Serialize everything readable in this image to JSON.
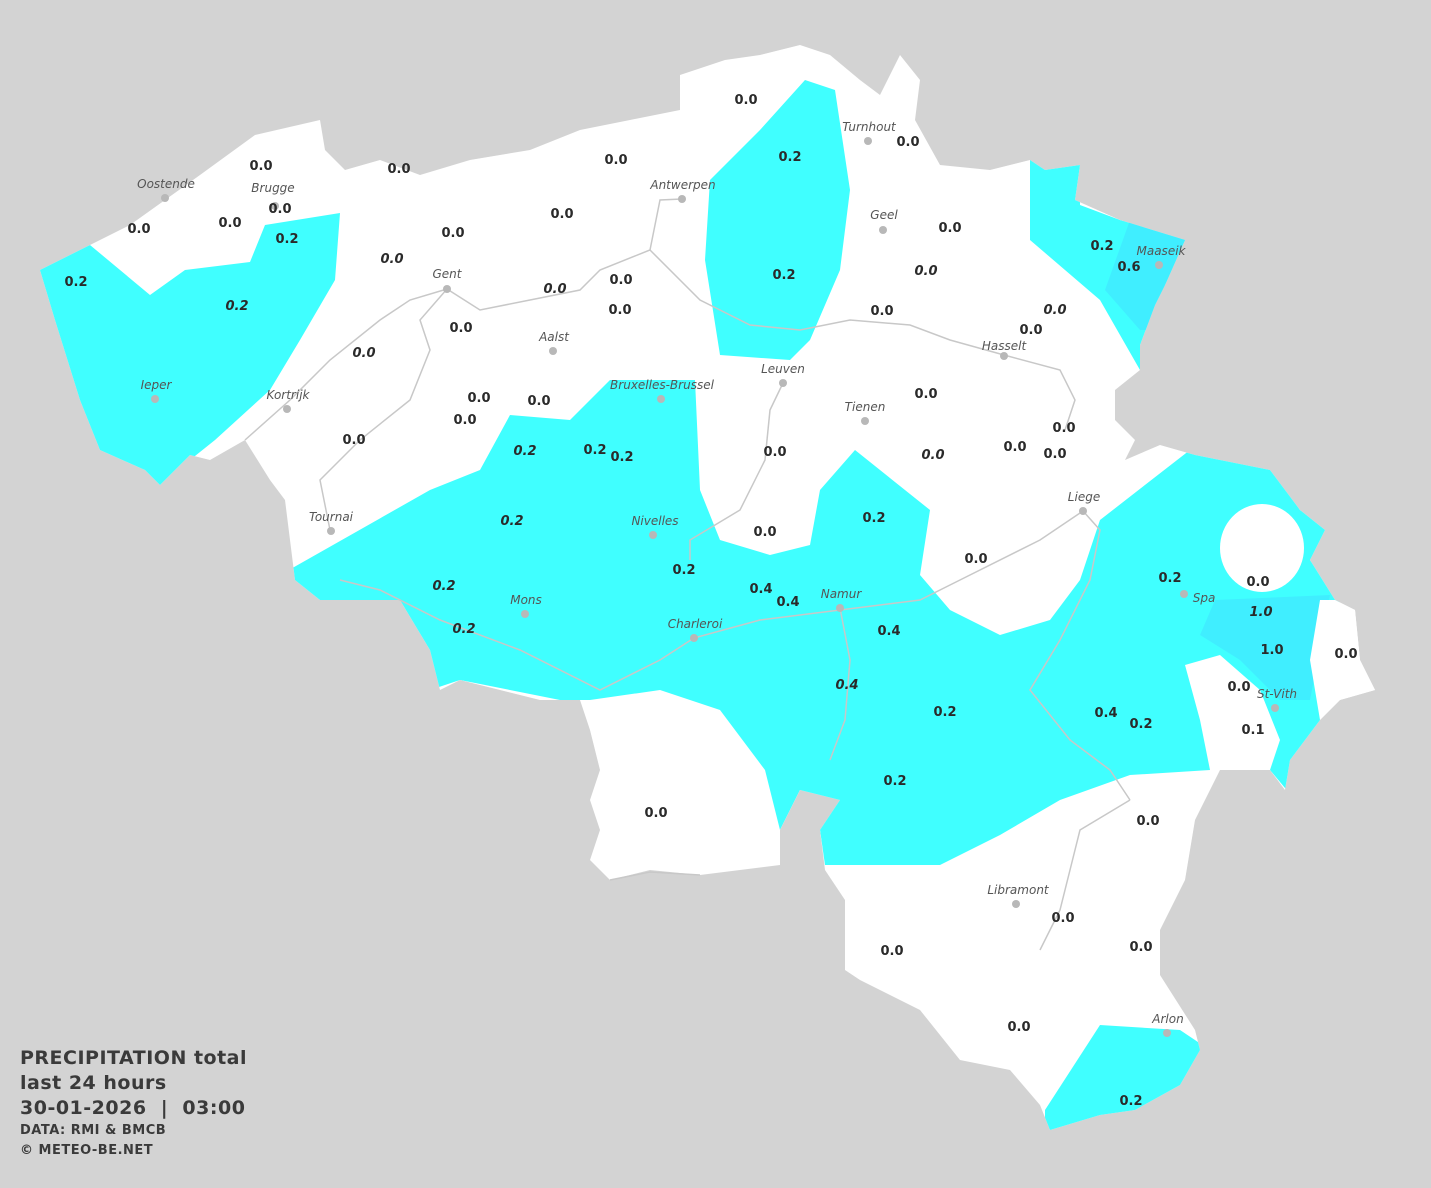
{
  "map": {
    "title": "PRECIPITATION total",
    "subtitle": "last 24 hours",
    "datetime": "30-01-2026  |  03:00",
    "source": "DATA: RMI & BMCB",
    "copyright": "© METEO-BE.NET",
    "colors": {
      "background": "#d3d3d3",
      "land": "#ffffff",
      "precip_0_1_to_0_5": "#40ffff",
      "precip_0_5_to_1_0": "#40eeff",
      "rivers": "#c8c8c8",
      "city_dot": "#b8b8b8"
    },
    "cities": [
      "Oostende",
      "Brugge",
      "Antwerpen",
      "Turnhout",
      "Geel",
      "Maaseik",
      "Gent",
      "Aalst",
      "Hasselt",
      "Leuven",
      "Ieper",
      "Kortrijk",
      "Bruxelles-Brussel",
      "Tienen",
      "Liege",
      "Tournai",
      "Nivelles",
      "Spa",
      "Mons",
      "Namur",
      "Charleroi",
      "St-Vith",
      "Libramont",
      "Arlon"
    ],
    "values": [
      {
        "v": "0.0"
      },
      {
        "v": "0.2"
      },
      {
        "v": "0.0"
      },
      {
        "v": "0.0"
      },
      {
        "v": "0.0"
      },
      {
        "v": "0.0"
      },
      {
        "v": "0.0"
      },
      {
        "v": "0.0"
      },
      {
        "v": "0.0"
      },
      {
        "v": "0.2"
      },
      {
        "v": "0.0"
      },
      {
        "v": "0.0"
      },
      {
        "v": "0.0",
        "italic": true
      },
      {
        "v": "0.2"
      },
      {
        "v": "0.2",
        "italic": true
      },
      {
        "v": "0.0"
      },
      {
        "v": "0.0",
        "italic": true
      },
      {
        "v": "0.0"
      },
      {
        "v": "0.0"
      },
      {
        "v": "0.0",
        "italic": true
      },
      {
        "v": "0.2"
      },
      {
        "v": "0.0"
      },
      {
        "v": "0.0",
        "italic": true
      },
      {
        "v": "0.2"
      },
      {
        "v": "0.6"
      },
      {
        "v": "0.0",
        "italic": true
      },
      {
        "v": "0.0"
      },
      {
        "v": "0.0"
      },
      {
        "v": "0.0"
      },
      {
        "v": "0.0"
      },
      {
        "v": "0.0"
      },
      {
        "v": "0.0"
      },
      {
        "v": "0.0"
      },
      {
        "v": "0.0"
      },
      {
        "v": "0.0"
      },
      {
        "v": "0.0",
        "italic": true
      },
      {
        "v": "0.0"
      },
      {
        "v": "0.0"
      },
      {
        "v": "0.2",
        "italic": true
      },
      {
        "v": "0.2"
      },
      {
        "v": "0.2"
      },
      {
        "v": "0.2",
        "italic": true
      },
      {
        "v": "0.2"
      },
      {
        "v": "0.0"
      },
      {
        "v": "0.2"
      },
      {
        "v": "0.0"
      },
      {
        "v": "0.2",
        "italic": true
      },
      {
        "v": "0.4"
      },
      {
        "v": "0.4"
      },
      {
        "v": "0.2",
        "italic": true
      },
      {
        "v": "0.4"
      },
      {
        "v": "0.2"
      },
      {
        "v": "0.0"
      },
      {
        "v": "1.0",
        "italic": true
      },
      {
        "v": "1.0"
      },
      {
        "v": "0.0"
      },
      {
        "v": "0.0"
      },
      {
        "v": "0.1"
      },
      {
        "v": "0.4",
        "italic": true
      },
      {
        "v": "0.2"
      },
      {
        "v": "0.4"
      },
      {
        "v": "0.2"
      },
      {
        "v": "0.2"
      },
      {
        "v": "0.0"
      },
      {
        "v": "0.0"
      },
      {
        "v": "0.0"
      },
      {
        "v": "0.0"
      },
      {
        "v": "0.0"
      },
      {
        "v": "0.0"
      },
      {
        "v": "0.2"
      }
    ]
  }
}
